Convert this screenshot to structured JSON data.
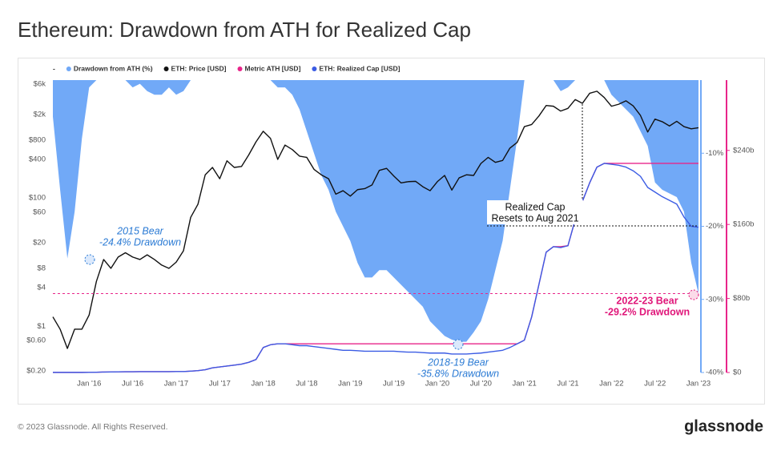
{
  "chart_data": {
    "type": "line",
    "title": "Ethereum: Drawdown from ATH for Realized Cap",
    "legend_prefix": "-",
    "x": [
      "2015-08",
      "2015-09",
      "2015-10",
      "2015-11",
      "2015-12",
      "2016-01",
      "2016-02",
      "2016-03",
      "2016-04",
      "2016-05",
      "2016-06",
      "2016-07",
      "2016-08",
      "2016-09",
      "2016-10",
      "2016-11",
      "2016-12",
      "2017-01",
      "2017-02",
      "2017-03",
      "2017-04",
      "2017-05",
      "2017-06",
      "2017-07",
      "2017-08",
      "2017-09",
      "2017-10",
      "2017-11",
      "2017-12",
      "2018-01",
      "2018-02",
      "2018-03",
      "2018-04",
      "2018-05",
      "2018-06",
      "2018-07",
      "2018-08",
      "2018-09",
      "2018-10",
      "2018-11",
      "2018-12",
      "2019-01",
      "2019-02",
      "2019-03",
      "2019-04",
      "2019-05",
      "2019-06",
      "2019-07",
      "2019-08",
      "2019-09",
      "2019-10",
      "2019-11",
      "2019-12",
      "2020-01",
      "2020-02",
      "2020-03",
      "2020-04",
      "2020-05",
      "2020-06",
      "2020-07",
      "2020-08",
      "2020-09",
      "2020-10",
      "2020-11",
      "2020-12",
      "2021-01",
      "2021-02",
      "2021-03",
      "2021-04",
      "2021-05",
      "2021-06",
      "2021-07",
      "2021-08",
      "2021-09",
      "2021-10",
      "2021-11",
      "2021-12",
      "2022-01",
      "2022-02",
      "2022-03",
      "2022-04",
      "2022-05",
      "2022-06",
      "2022-07",
      "2022-08",
      "2022-09",
      "2022-10",
      "2022-11",
      "2022-12",
      "2023-01"
    ],
    "xlim": [
      "2015-08",
      "2023-01"
    ],
    "xticks": [
      {
        "value": "2016-01",
        "label": "Jan '16"
      },
      {
        "value": "2016-07",
        "label": "Jul '16"
      },
      {
        "value": "2017-01",
        "label": "Jan '17"
      },
      {
        "value": "2017-07",
        "label": "Jul '17"
      },
      {
        "value": "2018-01",
        "label": "Jan '18"
      },
      {
        "value": "2018-07",
        "label": "Jul '18"
      },
      {
        "value": "2019-01",
        "label": "Jan '19"
      },
      {
        "value": "2019-07",
        "label": "Jul '19"
      },
      {
        "value": "2020-01",
        "label": "Jan '20"
      },
      {
        "value": "2020-07",
        "label": "Jul '20"
      },
      {
        "value": "2021-01",
        "label": "Jan '21"
      },
      {
        "value": "2021-07",
        "label": "Jul '21"
      },
      {
        "value": "2022-01",
        "label": "Jan '22"
      },
      {
        "value": "2022-07",
        "label": "Jul '22"
      },
      {
        "value": "2023-01",
        "label": "Jan '23"
      }
    ],
    "ylim": [
      0.19,
      6900
    ],
    "ylog": true,
    "yticks": [
      {
        "value": 6000,
        "label": "$6k"
      },
      {
        "value": 2000,
        "label": "$2k"
      },
      {
        "value": 800,
        "label": "$800"
      },
      {
        "value": 400,
        "label": "$400"
      },
      {
        "value": 100,
        "label": "$100"
      },
      {
        "value": 60,
        "label": "$60"
      },
      {
        "value": 20,
        "label": "$20"
      },
      {
        "value": 8,
        "label": "$8"
      },
      {
        "value": 4,
        "label": "$4"
      },
      {
        "value": 1,
        "label": "$1"
      },
      {
        "value": 0.6,
        "label": "$0.60"
      },
      {
        "value": 0.2,
        "label": "$0.20"
      }
    ],
    "y2lim": [
      -40,
      0
    ],
    "y2ticks": [
      {
        "value": -10,
        "label": "-10%"
      },
      {
        "value": -20,
        "label": "-20%"
      },
      {
        "value": -30,
        "label": "-30%"
      },
      {
        "value": -40,
        "label": "-40%"
      }
    ],
    "y3lim": [
      0,
      316
    ],
    "y3ticks": [
      {
        "value": 240,
        "label": "$240b"
      },
      {
        "value": 160,
        "label": "$160b"
      },
      {
        "value": 80,
        "label": "$80b"
      },
      {
        "value": 0,
        "label": "$0"
      }
    ],
    "series": [
      {
        "name": "Drawdown from ATH (%)",
        "kind": "area",
        "axis": "y2",
        "color": "#71a9f7",
        "values": [
          -5,
          -15,
          -24.4,
          -18,
          -8,
          -1,
          0,
          0,
          0,
          0,
          0,
          -1,
          -0.5,
          -1.5,
          -2,
          -2,
          -1,
          -2,
          -1.5,
          0,
          0,
          0,
          0,
          0,
          0,
          0,
          0,
          0,
          0,
          0,
          0,
          -1,
          -1,
          -2,
          -4,
          -7,
          -10,
          -13,
          -15,
          -18,
          -20,
          -22,
          -25,
          -27,
          -27,
          -26,
          -26,
          -27,
          -28,
          -29,
          -30,
          -31,
          -33,
          -34,
          -35,
          -35.5,
          -35.8,
          -35.8,
          -34.5,
          -33,
          -30,
          -26,
          -22,
          -15,
          -8,
          0,
          0,
          0,
          0,
          0,
          -1.5,
          -1,
          0,
          0,
          0,
          0,
          0,
          -2,
          -3,
          -4,
          -5,
          -7,
          -9,
          -14,
          -15,
          -15.5,
          -16,
          -18,
          -25,
          -29.2
        ]
      },
      {
        "name": "ETH: Price [USD]",
        "kind": "line",
        "axis": "y",
        "color": "#111111",
        "values": [
          1.4,
          0.9,
          0.45,
          0.9,
          0.9,
          1.5,
          5,
          11,
          8,
          12,
          14,
          12,
          11,
          13,
          11,
          9,
          8,
          10,
          15,
          50,
          80,
          230,
          300,
          200,
          380,
          300,
          310,
          470,
          750,
          1100,
          850,
          400,
          670,
          570,
          450,
          430,
          280,
          230,
          200,
          115,
          130,
          107,
          135,
          140,
          160,
          270,
          290,
          220,
          172,
          180,
          182,
          150,
          130,
          180,
          225,
          133,
          206,
          230,
          225,
          345,
          430,
          360,
          385,
          600,
          735,
          1300,
          1400,
          1900,
          2770,
          2700,
          2270,
          2500,
          3430,
          3000,
          4300,
          4630,
          3700,
          2700,
          2900,
          3280,
          2730,
          1940,
          1070,
          1700,
          1550,
          1330,
          1570,
          1300,
          1200,
          1250
        ]
      },
      {
        "name": "Metric ATH [USD]",
        "kind": "line",
        "axis": "y3",
        "color": "#e8258a",
        "values": [
          0.1,
          0.1,
          0.1,
          0.1,
          0.1,
          0.2,
          0.3,
          0.5,
          0.6,
          0.7,
          0.8,
          0.8,
          0.9,
          0.9,
          0.9,
          0.9,
          0.9,
          1,
          1,
          1.5,
          2,
          3,
          5,
          6,
          7,
          8,
          9,
          11,
          14,
          27,
          30,
          31,
          31,
          31,
          31,
          31,
          31,
          31,
          31,
          31,
          31,
          31,
          31,
          31,
          31,
          31,
          31,
          31,
          31,
          31,
          31,
          31,
          31,
          31,
          31,
          31,
          31,
          31,
          31,
          31,
          31,
          31,
          31,
          31,
          31,
          35,
          60,
          95,
          130,
          136,
          136,
          137,
          165,
          185,
          205,
          222,
          226,
          226,
          226,
          226,
          226,
          226,
          226,
          226,
          226,
          226,
          226,
          226,
          226,
          226
        ]
      },
      {
        "name": "ETH: Realized Cap [USD]",
        "kind": "line",
        "axis": "y3",
        "color": "#3b5ce4",
        "values": [
          0.1,
          0.1,
          0.1,
          0.1,
          0.1,
          0.2,
          0.3,
          0.5,
          0.6,
          0.7,
          0.8,
          0.8,
          0.9,
          0.9,
          0.9,
          0.9,
          0.9,
          1,
          1,
          1.5,
          2,
          3,
          5,
          6,
          7,
          8,
          9,
          11,
          14,
          27,
          30,
          31,
          31,
          30,
          29,
          29,
          28,
          27,
          26,
          25,
          24,
          24,
          23.5,
          23,
          23,
          23,
          23,
          23,
          22.5,
          22,
          22,
          21.5,
          21,
          21,
          21,
          20,
          20,
          20,
          20.5,
          21,
          22,
          23,
          24,
          27,
          31,
          35,
          60,
          95,
          130,
          136,
          135,
          137,
          165,
          185,
          205,
          222,
          226,
          225,
          224,
          222,
          218,
          212,
          200,
          195,
          190,
          186,
          182,
          168,
          158,
          157
        ]
      }
    ],
    "annotations": [
      {
        "lines": [
          "2015 Bear",
          "-24.4% Drawdown"
        ]
      },
      {
        "lines": [
          "2018-19 Bear",
          "-35.8% Drawdown"
        ]
      },
      {
        "lines": [
          "2022-23 Bear",
          "-29.2% Drawdown"
        ]
      },
      {
        "lines": [
          "Realized Cap",
          "Resets to Aug 2021"
        ]
      }
    ],
    "footer": "© 2023 Glassnode. All Rights Reserved.",
    "brand": "glassnode"
  }
}
